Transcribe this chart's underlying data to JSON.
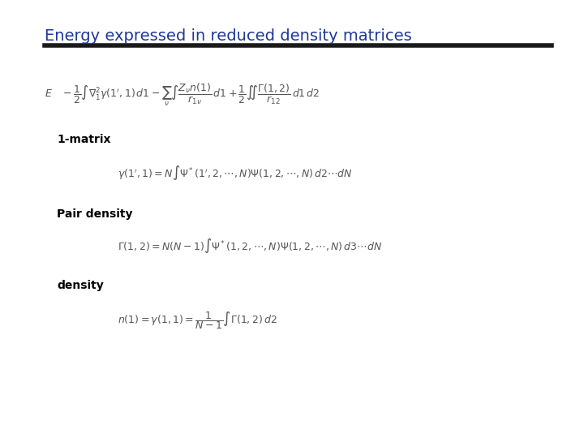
{
  "title": "Energy expressed in reduced density matrices",
  "title_color": "#1F3899",
  "title_fontsize": 14,
  "bg_color": "#ffffff",
  "line_color": "#1a1a1a",
  "label_1matrix": "1-matrix",
  "label_pair": "Pair density",
  "label_density": "density",
  "label_fontsize": 10,
  "label_fontweight": "bold",
  "eq_fontsize": 9,
  "eq_color": "#555555"
}
